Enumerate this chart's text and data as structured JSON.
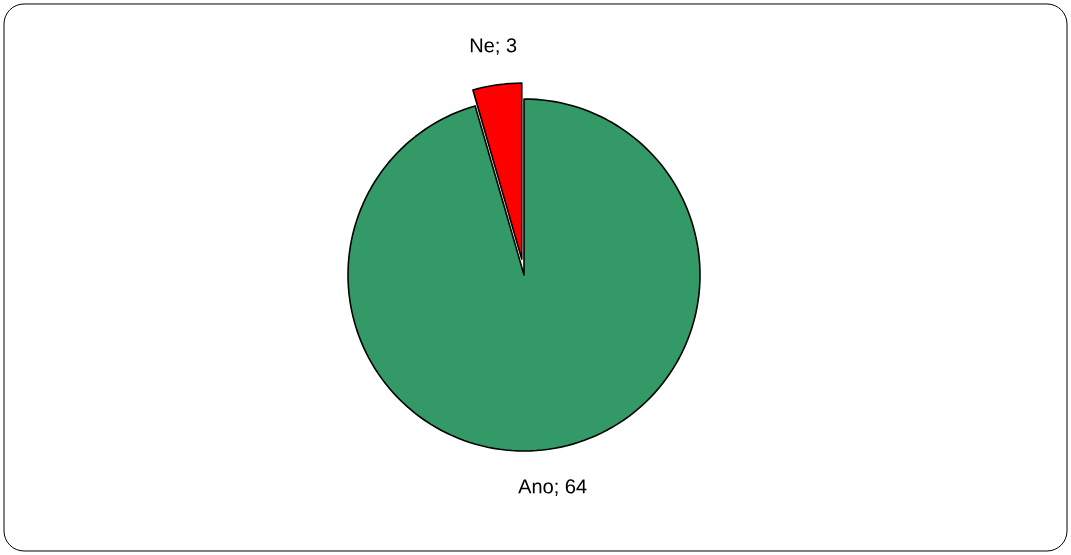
{
  "chart_data": {
    "type": "pie",
    "categories": [
      "Ano",
      "Ne"
    ],
    "values": [
      64,
      3
    ],
    "colors": [
      "#339966",
      "#ff0000"
    ],
    "value_labels": [
      "; 64",
      "; 3"
    ]
  }
}
